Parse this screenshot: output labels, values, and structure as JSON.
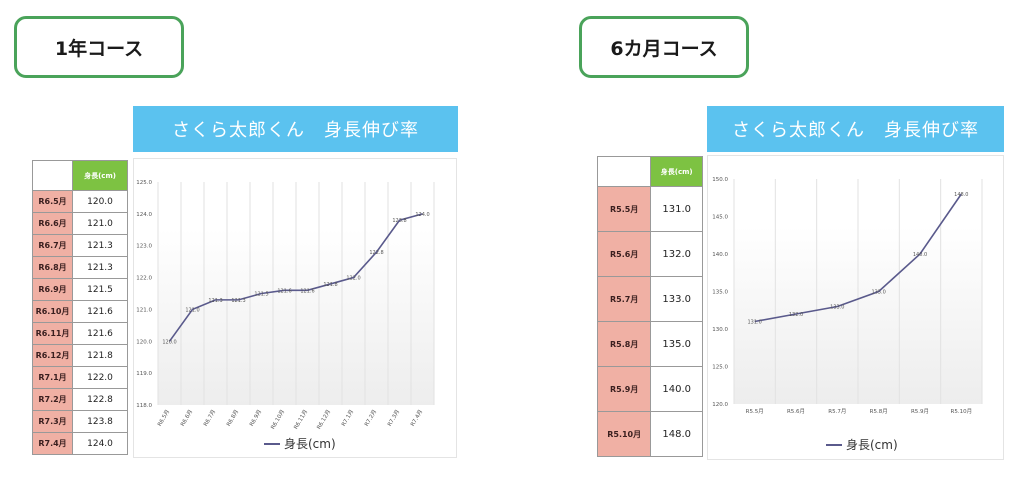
{
  "left": {
    "course_label": "1年コース",
    "banner": "さくら太郎くん　身長伸び率",
    "table": {
      "header_height": "身長(cm)",
      "rows": [
        {
          "month": "R6.5月",
          "value": "120.0"
        },
        {
          "month": "R6.6月",
          "value": "121.0"
        },
        {
          "month": "R6.7月",
          "value": "121.3"
        },
        {
          "month": "R6.8月",
          "value": "121.3"
        },
        {
          "month": "R6.9月",
          "value": "121.5"
        },
        {
          "month": "R6.10月",
          "value": "121.6"
        },
        {
          "month": "R6.11月",
          "value": "121.6"
        },
        {
          "month": "R6.12月",
          "value": "121.8"
        },
        {
          "month": "R7.1月",
          "value": "122.0"
        },
        {
          "month": "R7.2月",
          "value": "122.8"
        },
        {
          "month": "R7.3月",
          "value": "123.8"
        },
        {
          "month": "R7.4月",
          "value": "124.0"
        }
      ]
    },
    "legend": "身長(cm)"
  },
  "right": {
    "course_label": "6カ月コース",
    "banner": "さくら太郎くん　身長伸び率",
    "table": {
      "header_height": "身長(cm)",
      "rows": [
        {
          "month": "R5.5月",
          "value": "131.0"
        },
        {
          "month": "R5.6月",
          "value": "132.0"
        },
        {
          "month": "R5.7月",
          "value": "133.0"
        },
        {
          "month": "R5.8月",
          "value": "135.0"
        },
        {
          "month": "R5.9月",
          "value": "140.0"
        },
        {
          "month": "R5.10月",
          "value": "148.0"
        }
      ]
    },
    "legend": "身長(cm)"
  },
  "colors": {
    "course_border": "#4aa35a",
    "banner": "#5bc2ef",
    "month_cell": "#f0b0a4",
    "header_cell": "#7dc242",
    "line": "#5a5a8c"
  },
  "chart_data": [
    {
      "type": "line",
      "categories": [
        "R6.5月",
        "R6.6月",
        "R6.7月",
        "R6.8月",
        "R6.9月",
        "R6.10月",
        "R6.11月",
        "R6.12月",
        "R7.1月",
        "R7.2月",
        "R7.3月",
        "R7.4月"
      ],
      "series": [
        {
          "name": "身長(cm)",
          "values": [
            120.0,
            121.0,
            121.3,
            121.3,
            121.5,
            121.6,
            121.6,
            121.8,
            122.0,
            122.8,
            123.8,
            124.0
          ]
        }
      ],
      "ylim": [
        118,
        125
      ],
      "yticks": [
        "118.0",
        "119.0",
        "120.0",
        "121.0",
        "122.0",
        "123.0",
        "124.0",
        "125.0"
      ],
      "grid": "vertical",
      "legend": "bottom"
    },
    {
      "type": "line",
      "categories": [
        "R5.5月",
        "R5.6月",
        "R5.7月",
        "R5.8月",
        "R5.9月",
        "R5.10月"
      ],
      "series": [
        {
          "name": "身長(cm)",
          "values": [
            131.0,
            132.0,
            133.0,
            135.0,
            140.0,
            148.0
          ]
        }
      ],
      "ylim": [
        120,
        150
      ],
      "yticks": [
        "120.0",
        "125.0",
        "130.0",
        "135.0",
        "140.0",
        "145.0",
        "150.0"
      ],
      "grid": "vertical",
      "legend": "bottom"
    }
  ]
}
